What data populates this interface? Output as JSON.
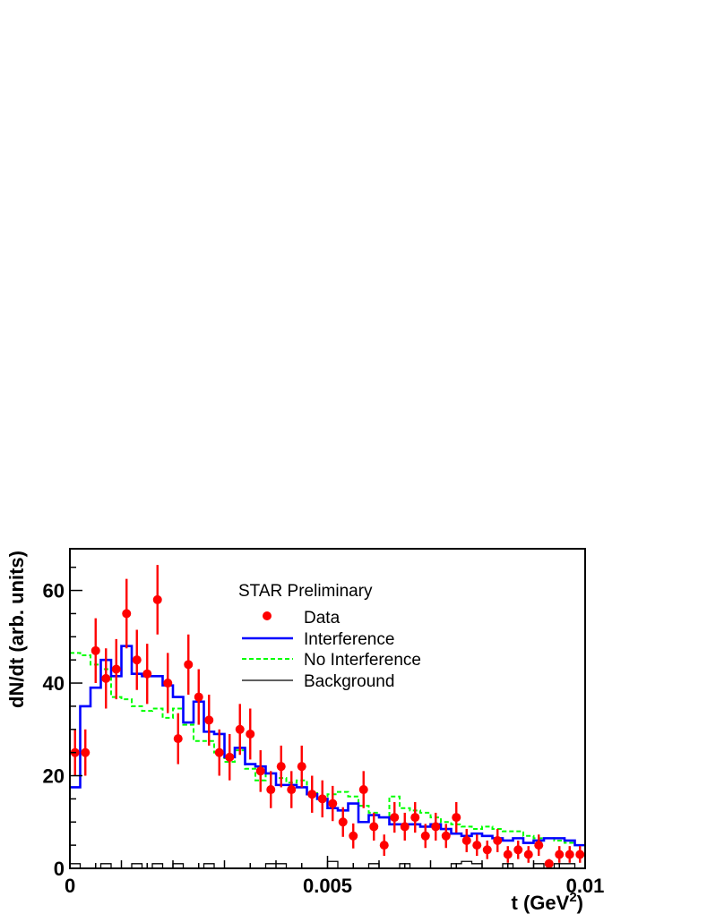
{
  "chart_data": {
    "type": "line",
    "annotation": "STAR Preliminary",
    "xlabel": "t (GeV",
    "xlabel_sup": "2",
    "xlabel_close": ")",
    "ylabel": "dN/dt (arb. units)",
    "xlim": [
      0,
      0.01
    ],
    "ylim": [
      0,
      69
    ],
    "x_ticks": [
      {
        "value": 0,
        "label": "0"
      },
      {
        "value": 0.005,
        "label": "0.005"
      },
      {
        "value": 0.01,
        "label": "0.01"
      }
    ],
    "y_ticks": [
      {
        "value": 0,
        "label": "0"
      },
      {
        "value": 20,
        "label": "20"
      },
      {
        "value": 40,
        "label": "40"
      },
      {
        "value": 60,
        "label": "60"
      }
    ],
    "bin_width": 0.0002,
    "bin_start": 0,
    "grid": false,
    "legend_position": "top-right",
    "legend": [
      {
        "name": "Data",
        "style": "marker",
        "color": "#ff0000"
      },
      {
        "name": "Interference",
        "style": "solid",
        "color": "#0000ff"
      },
      {
        "name": "No Interference",
        "style": "dashed",
        "color": "#00ff00"
      },
      {
        "name": "Background",
        "style": "solid-thin",
        "color": "#000000"
      }
    ],
    "series": [
      {
        "name": "Data",
        "kind": "points",
        "color": "#ff0000",
        "x": [
          0.0001,
          0.0003,
          0.0005,
          0.0007,
          0.0009,
          0.0011,
          0.0013,
          0.0015,
          0.0017,
          0.0019,
          0.0021,
          0.0023,
          0.0025,
          0.0027,
          0.0029,
          0.0031,
          0.0033,
          0.0035,
          0.0037,
          0.0039,
          0.0041,
          0.0043,
          0.0045,
          0.0047,
          0.0049,
          0.0051,
          0.0053,
          0.0055,
          0.0057,
          0.0059,
          0.0061,
          0.0063,
          0.0065,
          0.0067,
          0.0069,
          0.0071,
          0.0073,
          0.0075,
          0.0077,
          0.0079,
          0.0081,
          0.0083,
          0.0085,
          0.0087,
          0.0089,
          0.0091,
          0.0093,
          0.0095,
          0.0097,
          0.0099
        ],
        "y": [
          25,
          25,
          47,
          41,
          43,
          55,
          45,
          42,
          58,
          40,
          28,
          44,
          37,
          32,
          25,
          24,
          30,
          29,
          21,
          17,
          22,
          17,
          22,
          16,
          15,
          14,
          10,
          7,
          17,
          9,
          5,
          11,
          9,
          11,
          7,
          9,
          7,
          11,
          6,
          5,
          4,
          6,
          3,
          4,
          3,
          5,
          1,
          3,
          3,
          3
        ],
        "err": [
          5,
          5,
          7,
          6.5,
          6.5,
          7.5,
          6.5,
          6.5,
          7.5,
          6.5,
          5.5,
          6.5,
          6,
          5.5,
          5,
          5,
          5.5,
          5.5,
          4.5,
          4,
          4.5,
          4,
          4.5,
          4,
          4,
          3.8,
          3.2,
          2.7,
          4,
          3,
          2.3,
          3.3,
          3,
          3.3,
          2.6,
          3,
          2.6,
          3.3,
          2.5,
          2.3,
          2,
          2.5,
          1.8,
          2,
          1.8,
          2.3,
          1,
          1.8,
          1.8,
          1.8
        ]
      },
      {
        "name": "Interference",
        "kind": "histogram",
        "color": "#0000ff",
        "values": [
          17.5,
          35,
          39,
          45,
          41.5,
          48,
          42,
          41.5,
          41.5,
          39.5,
          37,
          31.5,
          36,
          29.5,
          29,
          24,
          26,
          22.5,
          22,
          20.5,
          18,
          18,
          17.5,
          16,
          15,
          13,
          12.5,
          14,
          10,
          11.5,
          11,
          9.5,
          9.5,
          9.5,
          9,
          9.5,
          8.5,
          7.5,
          7,
          7.5,
          7,
          6.5,
          6,
          6.5,
          5.5,
          6,
          6.5,
          6.5,
          6,
          5
        ]
      },
      {
        "name": "No Interference",
        "kind": "histogram",
        "color": "#00ff00",
        "values": [
          46.5,
          46,
          44,
          43,
          37,
          36.5,
          35,
          34,
          34.5,
          32.5,
          34.5,
          31,
          27.5,
          27.5,
          25,
          23,
          25.5,
          21.5,
          19,
          20.5,
          19.5,
          18.5,
          19,
          16.5,
          15.5,
          16,
          16.5,
          15.5,
          13.5,
          12,
          11,
          15.5,
          13,
          12.5,
          12,
          11,
          10,
          9.5,
          9,
          8.5,
          9,
          8.5,
          8,
          8,
          7,
          6.5,
          6.5,
          6,
          5.5,
          5
        ]
      },
      {
        "name": "Background",
        "kind": "histogram",
        "color": "#000000",
        "values": [
          1,
          0,
          0,
          1,
          0,
          0,
          1,
          0,
          1,
          0,
          1,
          0,
          0,
          1,
          0,
          0,
          0,
          0,
          0,
          1,
          1,
          0,
          0,
          0,
          0,
          1.5,
          0,
          0,
          0,
          1,
          0,
          0,
          1,
          0,
          0,
          0,
          0,
          1,
          1.5,
          1,
          0,
          0,
          1,
          0,
          0,
          1,
          0,
          1,
          1,
          0
        ]
      }
    ]
  }
}
